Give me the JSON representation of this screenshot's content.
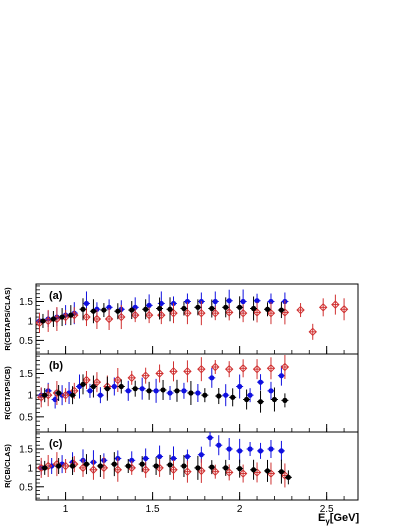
{
  "figure": {
    "xlabel": "E",
    "xlabel_sub": "γ",
    "xlabel_unit": "[GeV]"
  },
  "colors": {
    "blue": "#1010e0",
    "red": "#d03030",
    "black": "#000000"
  },
  "chart_data": [
    {
      "type": "scatter",
      "panel_label": "(a)",
      "ylabel": "R(CBTAPS/CLAS)",
      "xlim": [
        0.83,
        2.68
      ],
      "ylim": [
        0.15,
        1.95
      ],
      "x_ticks": [
        1,
        1.5,
        2,
        2.5
      ],
      "x_tick_labels": [
        "",
        "",
        "",
        ""
      ],
      "y_ticks": [
        0.5,
        1,
        1.5
      ],
      "y_tick_labels": [
        "0.5",
        "1",
        "1.5"
      ],
      "series": [
        {
          "color": "blue",
          "marker": "filled-circle",
          "points": [
            [
              0.85,
              1.0
            ],
            [
              0.9,
              1.05
            ],
            [
              0.95,
              1.1
            ],
            [
              1.0,
              1.15
            ],
            [
              1.05,
              1.2
            ],
            [
              1.12,
              1.45
            ],
            [
              1.18,
              1.3
            ],
            [
              1.25,
              1.35
            ],
            [
              1.32,
              1.3
            ],
            [
              1.4,
              1.35
            ],
            [
              1.48,
              1.4
            ],
            [
              1.55,
              1.45
            ],
            [
              1.62,
              1.45
            ],
            [
              1.7,
              1.5
            ],
            [
              1.78,
              1.5
            ],
            [
              1.86,
              1.5
            ],
            [
              1.94,
              1.52
            ],
            [
              2.02,
              1.5
            ],
            [
              2.1,
              1.52
            ],
            [
              2.18,
              1.5
            ],
            [
              2.26,
              1.5
            ]
          ]
        },
        {
          "color": "red",
          "marker": "open-diamond",
          "points": [
            [
              0.85,
              0.95
            ],
            [
              0.9,
              1.0
            ],
            [
              0.95,
              1.05
            ],
            [
              1.0,
              1.1
            ],
            [
              1.05,
              1.15
            ],
            [
              1.12,
              1.1
            ],
            [
              1.18,
              1.05
            ],
            [
              1.25,
              1.05
            ],
            [
              1.32,
              1.1
            ],
            [
              1.4,
              1.15
            ],
            [
              1.48,
              1.15
            ],
            [
              1.55,
              1.15
            ],
            [
              1.62,
              1.2
            ],
            [
              1.7,
              1.2
            ],
            [
              1.78,
              1.2
            ],
            [
              1.86,
              1.2
            ],
            [
              1.94,
              1.22
            ],
            [
              2.02,
              1.2
            ],
            [
              2.1,
              1.22
            ],
            [
              2.18,
              1.2
            ],
            [
              2.26,
              1.22
            ],
            [
              2.35,
              1.28
            ],
            [
              2.42,
              0.72
            ],
            [
              2.48,
              1.35
            ],
            [
              2.55,
              1.42
            ],
            [
              2.6,
              1.3
            ]
          ]
        },
        {
          "color": "black",
          "marker": "filled-circle",
          "points": [
            [
              0.87,
              1.0
            ],
            [
              0.93,
              1.05
            ],
            [
              0.98,
              1.1
            ],
            [
              1.03,
              1.15
            ],
            [
              1.1,
              1.3
            ],
            [
              1.16,
              1.25
            ],
            [
              1.22,
              1.28
            ],
            [
              1.3,
              1.25
            ],
            [
              1.38,
              1.28
            ],
            [
              1.46,
              1.3
            ],
            [
              1.54,
              1.32
            ],
            [
              1.6,
              1.3
            ],
            [
              1.68,
              1.32
            ],
            [
              1.76,
              1.35
            ],
            [
              1.84,
              1.32
            ],
            [
              1.92,
              1.35
            ],
            [
              2.0,
              1.35
            ],
            [
              2.08,
              1.32
            ],
            [
              2.16,
              1.3
            ],
            [
              2.24,
              1.28
            ]
          ]
        }
      ]
    },
    {
      "type": "scatter",
      "panel_label": "(b)",
      "ylabel": "R(CBTAPS/CB)",
      "xlim": [
        0.83,
        2.68
      ],
      "ylim": [
        0.15,
        1.95
      ],
      "x_ticks": [
        1,
        1.5,
        2,
        2.5
      ],
      "x_tick_labels": [
        "",
        "",
        "",
        ""
      ],
      "y_ticks": [
        0.5,
        1,
        1.5
      ],
      "y_tick_labels": [
        "0.5",
        "1",
        "1.5"
      ],
      "series": [
        {
          "color": "blue",
          "marker": "filled-circle",
          "points": [
            [
              0.86,
              1.0
            ],
            [
              0.9,
              1.1
            ],
            [
              0.94,
              0.9
            ],
            [
              0.98,
              1.0
            ],
            [
              1.02,
              1.05
            ],
            [
              1.08,
              1.2
            ],
            [
              1.14,
              1.1
            ],
            [
              1.2,
              1.0
            ],
            [
              1.28,
              1.2
            ],
            [
              1.36,
              1.1
            ],
            [
              1.44,
              1.15
            ],
            [
              1.52,
              1.1
            ],
            [
              1.6,
              1.05
            ],
            [
              1.68,
              1.1
            ],
            [
              1.76,
              1.05
            ],
            [
              1.84,
              1.4
            ],
            [
              1.92,
              1.0
            ],
            [
              2.0,
              1.2
            ],
            [
              2.06,
              1.0
            ],
            [
              2.12,
              1.3
            ],
            [
              2.18,
              1.1
            ],
            [
              2.24,
              1.45
            ]
          ]
        },
        {
          "color": "red",
          "marker": "open-diamond",
          "points": [
            [
              0.86,
              0.95
            ],
            [
              0.9,
              1.0
            ],
            [
              0.95,
              1.05
            ],
            [
              1.0,
              1.0
            ],
            [
              1.05,
              1.1
            ],
            [
              1.12,
              1.35
            ],
            [
              1.18,
              1.3
            ],
            [
              1.24,
              1.2
            ],
            [
              1.3,
              1.35
            ],
            [
              1.38,
              1.4
            ],
            [
              1.46,
              1.45
            ],
            [
              1.54,
              1.5
            ],
            [
              1.62,
              1.55
            ],
            [
              1.7,
              1.55
            ],
            [
              1.78,
              1.6
            ],
            [
              1.86,
              1.65
            ],
            [
              1.94,
              1.6
            ],
            [
              2.02,
              1.62
            ],
            [
              2.1,
              1.6
            ],
            [
              2.18,
              1.62
            ],
            [
              2.26,
              1.65
            ]
          ]
        },
        {
          "color": "black",
          "marker": "filled-circle",
          "points": [
            [
              0.88,
              1.0
            ],
            [
              0.96,
              1.05
            ],
            [
              1.04,
              1.0
            ],
            [
              1.1,
              1.25
            ],
            [
              1.16,
              1.2
            ],
            [
              1.24,
              1.15
            ],
            [
              1.32,
              1.2
            ],
            [
              1.4,
              1.15
            ],
            [
              1.48,
              1.1
            ],
            [
              1.56,
              1.12
            ],
            [
              1.64,
              1.1
            ],
            [
              1.72,
              1.05
            ],
            [
              1.8,
              1.0
            ],
            [
              1.88,
              0.98
            ],
            [
              1.96,
              0.95
            ],
            [
              2.04,
              0.9
            ],
            [
              2.12,
              0.85
            ],
            [
              2.2,
              0.9
            ],
            [
              2.26,
              0.88
            ]
          ]
        }
      ]
    },
    {
      "type": "scatter",
      "panel_label": "(c)",
      "ylabel": "R(CB/CLAS)",
      "xlim": [
        0.83,
        2.68
      ],
      "ylim": [
        0.15,
        1.95
      ],
      "x_ticks": [
        1,
        1.5,
        2,
        2.5
      ],
      "x_tick_labels": [
        "1",
        "1.5",
        "2",
        "2.5"
      ],
      "y_ticks": [
        0.5,
        1,
        1.5
      ],
      "y_tick_labels": [
        "0.5",
        "1",
        "1.5"
      ],
      "series": [
        {
          "color": "blue",
          "marker": "filled-circle",
          "points": [
            [
              0.86,
              1.0
            ],
            [
              0.92,
              1.05
            ],
            [
              0.98,
              1.1
            ],
            [
              1.04,
              1.15
            ],
            [
              1.1,
              1.2
            ],
            [
              1.16,
              1.15
            ],
            [
              1.22,
              1.2
            ],
            [
              1.3,
              1.25
            ],
            [
              1.38,
              1.2
            ],
            [
              1.46,
              1.25
            ],
            [
              1.54,
              1.3
            ],
            [
              1.62,
              1.25
            ],
            [
              1.7,
              1.3
            ],
            [
              1.78,
              1.35
            ],
            [
              1.83,
              1.8
            ],
            [
              1.88,
              1.6
            ],
            [
              1.94,
              1.5
            ],
            [
              2.0,
              1.45
            ],
            [
              2.06,
              1.5
            ],
            [
              2.12,
              1.45
            ],
            [
              2.18,
              1.5
            ],
            [
              2.24,
              1.45
            ]
          ]
        },
        {
          "color": "red",
          "marker": "open-diamond",
          "points": [
            [
              0.86,
              1.0
            ],
            [
              0.9,
              1.05
            ],
            [
              0.95,
              1.1
            ],
            [
              1.0,
              1.05
            ],
            [
              1.05,
              1.1
            ],
            [
              1.1,
              1.0
            ],
            [
              1.16,
              0.95
            ],
            [
              1.22,
              1.0
            ],
            [
              1.3,
              0.95
            ],
            [
              1.38,
              1.0
            ],
            [
              1.46,
              0.95
            ],
            [
              1.54,
              1.0
            ],
            [
              1.62,
              0.95
            ],
            [
              1.7,
              0.9
            ],
            [
              1.78,
              0.92
            ],
            [
              1.86,
              0.9
            ],
            [
              1.94,
              0.88
            ],
            [
              2.02,
              0.85
            ],
            [
              2.1,
              0.88
            ],
            [
              2.18,
              0.85
            ],
            [
              2.26,
              0.8
            ]
          ]
        },
        {
          "color": "black",
          "marker": "filled-circle",
          "points": [
            [
              0.88,
              1.0
            ],
            [
              0.96,
              1.05
            ],
            [
              1.04,
              1.05
            ],
            [
              1.12,
              1.1
            ],
            [
              1.2,
              1.05
            ],
            [
              1.28,
              1.1
            ],
            [
              1.36,
              1.05
            ],
            [
              1.44,
              1.1
            ],
            [
              1.52,
              1.05
            ],
            [
              1.6,
              1.08
            ],
            [
              1.68,
              1.05
            ],
            [
              1.76,
              1.0
            ],
            [
              1.84,
              1.02
            ],
            [
              1.92,
              1.0
            ],
            [
              2.0,
              0.98
            ],
            [
              2.08,
              0.95
            ],
            [
              2.16,
              0.92
            ],
            [
              2.24,
              0.9
            ],
            [
              2.28,
              0.75
            ]
          ]
        }
      ]
    }
  ]
}
